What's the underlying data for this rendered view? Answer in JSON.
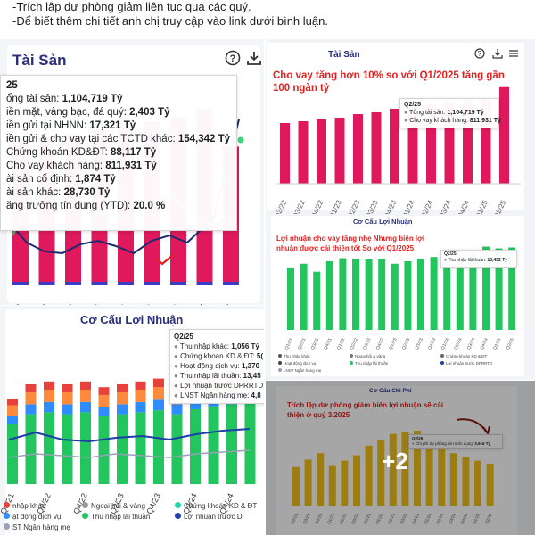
{
  "post": {
    "line1": "-Trích lập dự phòng giảm liên tục qua các quý.",
    "line2": "-Để biết thêm chi tiết anh chị truy cập vào link dưới bình luận."
  },
  "colors": {
    "bar_pink": "#e0195c",
    "bar_green": "#22c55e",
    "bar_yellow": "#f2c11a",
    "line_navy": "#1e2a6e",
    "annotation_red": "#e52020",
    "title_navy": "#2a2f7a"
  },
  "panel_tai_san": {
    "title": "Tài Sản",
    "help_icon": "help-circle-icon",
    "download_icon": "download-icon",
    "tooltip": {
      "header": "25",
      "rows": [
        {
          "label": "ổng tài sản: ",
          "value": "1,104,719 Tỷ"
        },
        {
          "label": "iền mặt, vàng bạc, đá quý: ",
          "value": "2,403 Tỷ"
        },
        {
          "label": "iền gửi tại NHNN: ",
          "value": "17,321 Tỷ"
        },
        {
          "label": "iền gửi & cho vay tại các TCTD khác: ",
          "value": "154,342 Tỷ"
        },
        {
          "label": "Chứng khoán KD&ĐT: ",
          "value": "88,117 Tỷ"
        },
        {
          "label": "Cho vay khách hàng: ",
          "value": "811,931 Tỷ"
        },
        {
          "label": "ài sản cố định: ",
          "value": "1,874 Tỷ"
        },
        {
          "label": "ài sản khác: ",
          "value": "28,730 Tỷ"
        },
        {
          "label": "ăng trưởng tín dụng (YTD): ",
          "value": "20.0 %"
        }
      ]
    }
  },
  "panel_co_cau_left": {
    "title": "Cơ Cấu Lợi Nhuận",
    "tooltip": {
      "header": "Q2/25",
      "rows": [
        {
          "label": "Thu nhập khác: ",
          "value": "1,056 Tỷ"
        },
        {
          "label": "Chứng khoán KD & ĐT: ",
          "value": "5("
        },
        {
          "label": "Hoạt động dịch vụ: ",
          "value": "1,370"
        },
        {
          "label": "Thu nhập lãi thuần: ",
          "value": "13,45"
        },
        {
          "label": "Lợi nhuận trước DPRRTD: ",
          "value": ""
        },
        {
          "label": "LNST Ngân hàng mẹ: ",
          "value": "4,8"
        }
      ]
    },
    "legend": [
      "nhập khác",
      "Ngoại hối & vàng",
      "Chứng khoán KD & ĐT",
      "ạt động dịch vụ",
      "Thu nhập lãi thuần",
      "Lợi nhuận trước D",
      "ST Ngân hàng mẹ"
    ]
  },
  "panel_tai_san_right": {
    "title": "Tài Sản",
    "annotation": "Cho vay tăng hơn 10% so với Q1/2025 tăng gần 100 ngàn tỷ",
    "tooltip": {
      "header": "Q2/25",
      "rows": [
        {
          "label": "Tổng tài sản: ",
          "value": "1,104,719 Tỷ"
        },
        {
          "label": "Cho vay khách hàng: ",
          "value": "811,931 Tỷ"
        }
      ]
    }
  },
  "panel_co_cau_right": {
    "title": "Cơ Cấu Lợi Nhuận",
    "annotation": "Lợi nhuận cho vay tăng nhẹ Nhưng biên lợi nhuận được cải thiện tốt So với Q1/2025",
    "tooltip": {
      "header": "Q2/25",
      "rows": [
        {
          "label": "Thu nhập lãi thuần: ",
          "value": "13,452 Tỷ"
        }
      ]
    },
    "legend": [
      "Thu nhập khác",
      "Ngoại hối & vàng",
      "Chứng khoán KD & ĐT",
      "Hoạt động dịch vụ",
      "Thu nhập lãi thuần",
      "Lợi nhuận trước DPRRTD",
      "LNST Ngân hàng mẹ"
    ]
  },
  "panel_chi_phi": {
    "title": "Cơ Cấu Chi Phí",
    "annotation": "Trích lập dự phòng giảm biên lợi nhuận sẽ cải thiện ở quý 3/2025",
    "tooltip": {
      "header": "Q2/25",
      "rows": [
        {
          "label": "Chi phí dự phòng rủi ro tín dụng: ",
          "value": "3,916 Tỷ"
        }
      ]
    },
    "more_photos": "+2"
  },
  "chart_data": [
    {
      "type": "bar",
      "title": "Tài Sản",
      "categories": [
        "Q2/23",
        "Q3/23",
        "Q4/23",
        "Q1/24",
        "Q2/24",
        "Q3/24",
        "Q4/24",
        "Q1/25",
        "Q2/25"
      ],
      "series": [
        {
          "name": "Cho vay khách hàng",
          "values": [
            null,
            null,
            null,
            null,
            null,
            null,
            null,
            null,
            811931
          ]
        },
        {
          "name": "Tổng tài sản",
          "values": [
            null,
            null,
            null,
            null,
            null,
            null,
            null,
            null,
            1104719
          ]
        }
      ]
    },
    {
      "type": "bar",
      "title": "Tài Sản",
      "categories": [
        "Q2/22",
        "Q3/22",
        "Q4/22",
        "Q1/23",
        "Q2/23",
        "Q3/23",
        "Q4/23",
        "Q1/24",
        "Q2/24",
        "Q3/24",
        "Q4/24",
        "Q1/25",
        "Q2/25"
      ],
      "series": [
        {
          "name": "Cho vay khách hàng",
          "values": [
            510000,
            525000,
            540000,
            555000,
            585000,
            600000,
            630000,
            645000,
            670000,
            690000,
            720000,
            715000,
            811931
          ]
        }
      ]
    },
    {
      "type": "bar",
      "title": "Cơ Cấu Lợi Nhuận",
      "categories": [
        "Q1/21",
        "Q2/21",
        "Q3/21",
        "Q4/21",
        "Q1/22",
        "Q2/22",
        "Q3/22",
        "Q4/22",
        "Q1/23",
        "Q2/23",
        "Q3/23",
        "Q4/23",
        "Q1/24",
        "Q2/24",
        "Q3/24",
        "Q4/24",
        "Q1/25",
        "Q2/25"
      ],
      "series": [
        {
          "name": "Thu nhập lãi thuần",
          "values": [
            10200,
            10800,
            9500,
            11200,
            11700,
            11600,
            11500,
            11600,
            10800,
            11200,
            11500,
            11900,
            11000,
            11800,
            12500,
            13600,
            13300,
            13452
          ]
        }
      ]
    },
    {
      "type": "bar",
      "title": "Cơ Cấu Chi Phí",
      "categories": [
        "Q2/21",
        "Q3/21",
        "Q4/21",
        "Q1/22",
        "Q2/22",
        "Q3/22",
        "Q4/22",
        "Q1/23",
        "Q2/23",
        "Q3/23",
        "Q4/23",
        "Q1/24",
        "Q2/24",
        "Q3/24",
        "Q4/24",
        "Q1/25",
        "Q2/25"
      ],
      "series": [
        {
          "name": "Chi phí dự phòng rủi ro tín dụng",
          "values": [
            3600,
            4300,
            4900,
            3700,
            4200,
            4700,
            5600,
            6100,
            6700,
            6900,
            7000,
            6200,
            5800,
            4900,
            4500,
            4200,
            3916
          ]
        }
      ]
    }
  ]
}
